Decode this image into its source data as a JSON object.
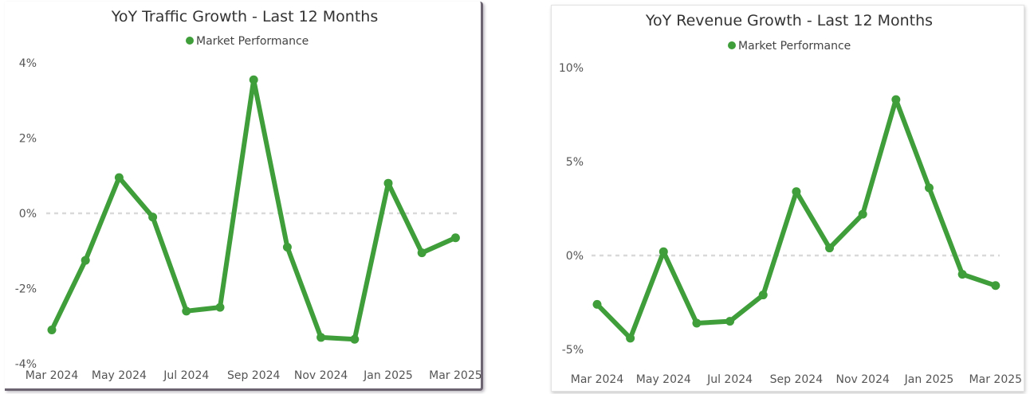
{
  "charts": [
    {
      "title": "YoY Traffic Growth - Last 12 Months",
      "legend": {
        "label": "Market Performance",
        "position": "top-center"
      },
      "color": "#3f9e3a",
      "zero_line_color": "#d9d9d9",
      "tick_labels_y": [
        "4%",
        "2%",
        "0%",
        "-2%",
        "-4%"
      ],
      "tick_labels_x": [
        "Mar 2024",
        "May 2024",
        "Jul 2024",
        "Sep 2024",
        "Nov 2024",
        "Jan 2025",
        "Mar 2025"
      ]
    },
    {
      "title": "YoY Revenue Growth - Last 12 Months",
      "legend": {
        "label": "Market Performance",
        "position": "top-center"
      },
      "color": "#3f9e3a",
      "zero_line_color": "#d9d9d9",
      "tick_labels_y": [
        "10%",
        "5%",
        "0%",
        "-5%"
      ],
      "tick_labels_x": [
        "Mar 2024",
        "May 2024",
        "Jul 2024",
        "Sep 2024",
        "Nov 2024",
        "Jan 2025",
        "Mar 2025"
      ]
    }
  ],
  "chart_data": [
    {
      "type": "line",
      "title": "YoY Traffic Growth - Last 12 Months",
      "xlabel": "",
      "ylabel": "",
      "x": [
        "Mar 2024",
        "Apr 2024",
        "May 2024",
        "Jun 2024",
        "Jul 2024",
        "Aug 2024",
        "Sep 2024",
        "Oct 2024",
        "Nov 2024",
        "Dec 2024",
        "Jan 2025",
        "Feb 2025",
        "Mar 2025"
      ],
      "series": [
        {
          "name": "Market Performance",
          "values": [
            -3.1,
            -1.25,
            0.95,
            -0.1,
            -2.6,
            -2.5,
            3.55,
            -0.9,
            -3.3,
            -3.35,
            0.8,
            -1.05,
            -0.65
          ]
        }
      ],
      "ylim": [
        -4,
        4
      ],
      "y_ticks": [
        4,
        2,
        0,
        -2,
        -4
      ],
      "x_ticks": [
        "Mar 2024",
        "May 2024",
        "Jul 2024",
        "Sep 2024",
        "Nov 2024",
        "Jan 2025",
        "Mar 2025"
      ],
      "zero_line": true,
      "grid": false,
      "legend": "top-center"
    },
    {
      "type": "line",
      "title": "YoY Revenue Growth - Last 12 Months",
      "xlabel": "",
      "ylabel": "",
      "x": [
        "Mar 2024",
        "Apr 2024",
        "May 2024",
        "Jun 2024",
        "Jul 2024",
        "Aug 2024",
        "Sep 2024",
        "Oct 2024",
        "Nov 2024",
        "Dec 2024",
        "Jan 2025",
        "Feb 2025",
        "Mar 2025"
      ],
      "series": [
        {
          "name": "Market Performance",
          "values": [
            -2.6,
            -4.4,
            0.2,
            -3.6,
            -3.5,
            -2.1,
            3.4,
            0.4,
            2.2,
            8.3,
            3.6,
            -1.0,
            -1.6
          ]
        }
      ],
      "ylim": [
        -5,
        10
      ],
      "y_ticks": [
        10,
        5,
        0,
        -5
      ],
      "x_ticks": [
        "Mar 2024",
        "May 2024",
        "Jul 2024",
        "Sep 2024",
        "Nov 2024",
        "Jan 2025",
        "Mar 2025"
      ],
      "zero_line": true,
      "grid": false,
      "legend": "top-center"
    }
  ]
}
